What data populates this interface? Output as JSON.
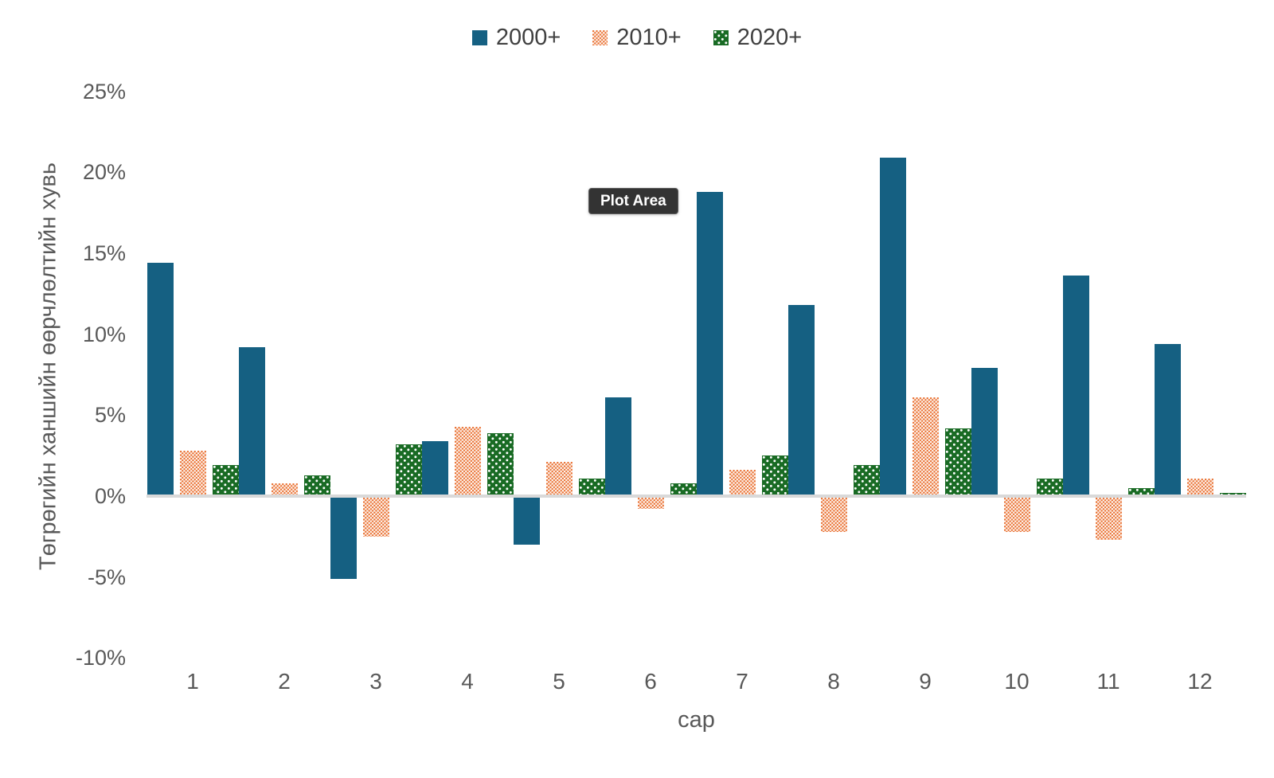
{
  "tooltip": {
    "label": "Plot Area"
  },
  "chart_data": {
    "type": "bar",
    "title": "",
    "xlabel": "сар",
    "ylabel": "Төгрөгийн ханшийн өөрчлөлтийн хувь",
    "categories": [
      "1",
      "2",
      "3",
      "4",
      "5",
      "6",
      "7",
      "8",
      "9",
      "10",
      "11",
      "12"
    ],
    "series": [
      {
        "name": "2000+",
        "color": "#156082",
        "pattern": "solid",
        "values": [
          14.3,
          9.1,
          -5.0,
          3.3,
          -2.9,
          6.0,
          18.7,
          11.7,
          20.8,
          7.8,
          13.5,
          9.3
        ]
      },
      {
        "name": "2010+",
        "color": "#E97132",
        "pattern": "orange-dots",
        "values": [
          2.7,
          0.7,
          -2.4,
          4.2,
          2.0,
          -0.7,
          1.5,
          -2.1,
          6.0,
          -2.1,
          -2.6,
          1.0
        ]
      },
      {
        "name": "2020+",
        "color": "#196B24",
        "pattern": "green-white-dots",
        "values": [
          1.8,
          1.2,
          3.1,
          3.8,
          1.0,
          0.7,
          2.4,
          1.8,
          4.1,
          1.0,
          0.4,
          0.1
        ]
      }
    ],
    "ylim": [
      -10,
      25
    ],
    "yticks": [
      {
        "value": 25,
        "label": "25%"
      },
      {
        "value": 20,
        "label": "20%"
      },
      {
        "value": 15,
        "label": "15%"
      },
      {
        "value": 10,
        "label": "10%"
      },
      {
        "value": 5,
        "label": "5%"
      },
      {
        "value": 0,
        "label": "0%"
      },
      {
        "value": -5,
        "label": "-5%"
      },
      {
        "value": -10,
        "label": "-10%"
      }
    ],
    "grid": false,
    "legend_position": "top-center",
    "baseline_color": "#d9d9d9",
    "axis_text_color": "#595959",
    "legend_text_color": "#404040"
  }
}
